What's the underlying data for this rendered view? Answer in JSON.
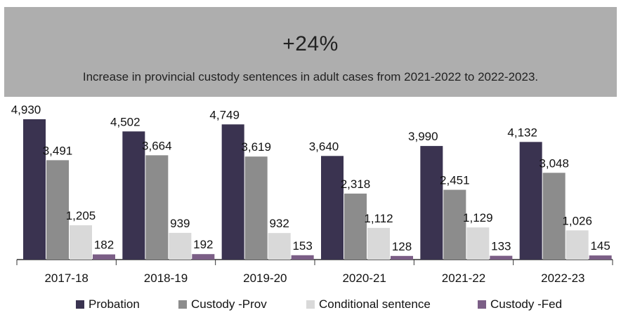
{
  "banner": {
    "headline": "+24%",
    "subline": "Increase in provincial custody sentences in adult cases from 2021-2022 to 2022-2023."
  },
  "chart_data": {
    "type": "bar",
    "title": "",
    "xlabel": "",
    "ylabel": "",
    "ylim": [
      0,
      5200
    ],
    "grid": false,
    "legend_position": "bottom",
    "categories": [
      "2017-18",
      "2018-19",
      "2019-20",
      "2020-21",
      "2021-22",
      "2022-23"
    ],
    "series": [
      {
        "name": "Probation",
        "color": "#3a3350",
        "values": [
          4930,
          4502,
          4749,
          3640,
          3990,
          4132
        ],
        "labels": [
          "4,930",
          "4,502",
          "4,749",
          "3,640",
          "3,990",
          "4,132"
        ]
      },
      {
        "name": "Custody -Prov",
        "color": "#8c8c8c",
        "values": [
          3491,
          3664,
          3619,
          2318,
          2451,
          3048
        ],
        "labels": [
          "3,491",
          "3,664",
          "3,619",
          "2,318",
          "2,451",
          "3,048"
        ]
      },
      {
        "name": "Conditional sentence",
        "color": "#d9d9d9",
        "values": [
          1205,
          939,
          932,
          1112,
          1129,
          1026
        ],
        "labels": [
          "1,205",
          "939",
          "932",
          "1,112",
          "1,129",
          "1,026"
        ]
      },
      {
        "name": "Custody -Fed",
        "color": "#7b5e86",
        "values": [
          182,
          192,
          153,
          128,
          133,
          145
        ],
        "labels": [
          "182",
          "192",
          "153",
          "128",
          "133",
          "145"
        ]
      }
    ]
  }
}
